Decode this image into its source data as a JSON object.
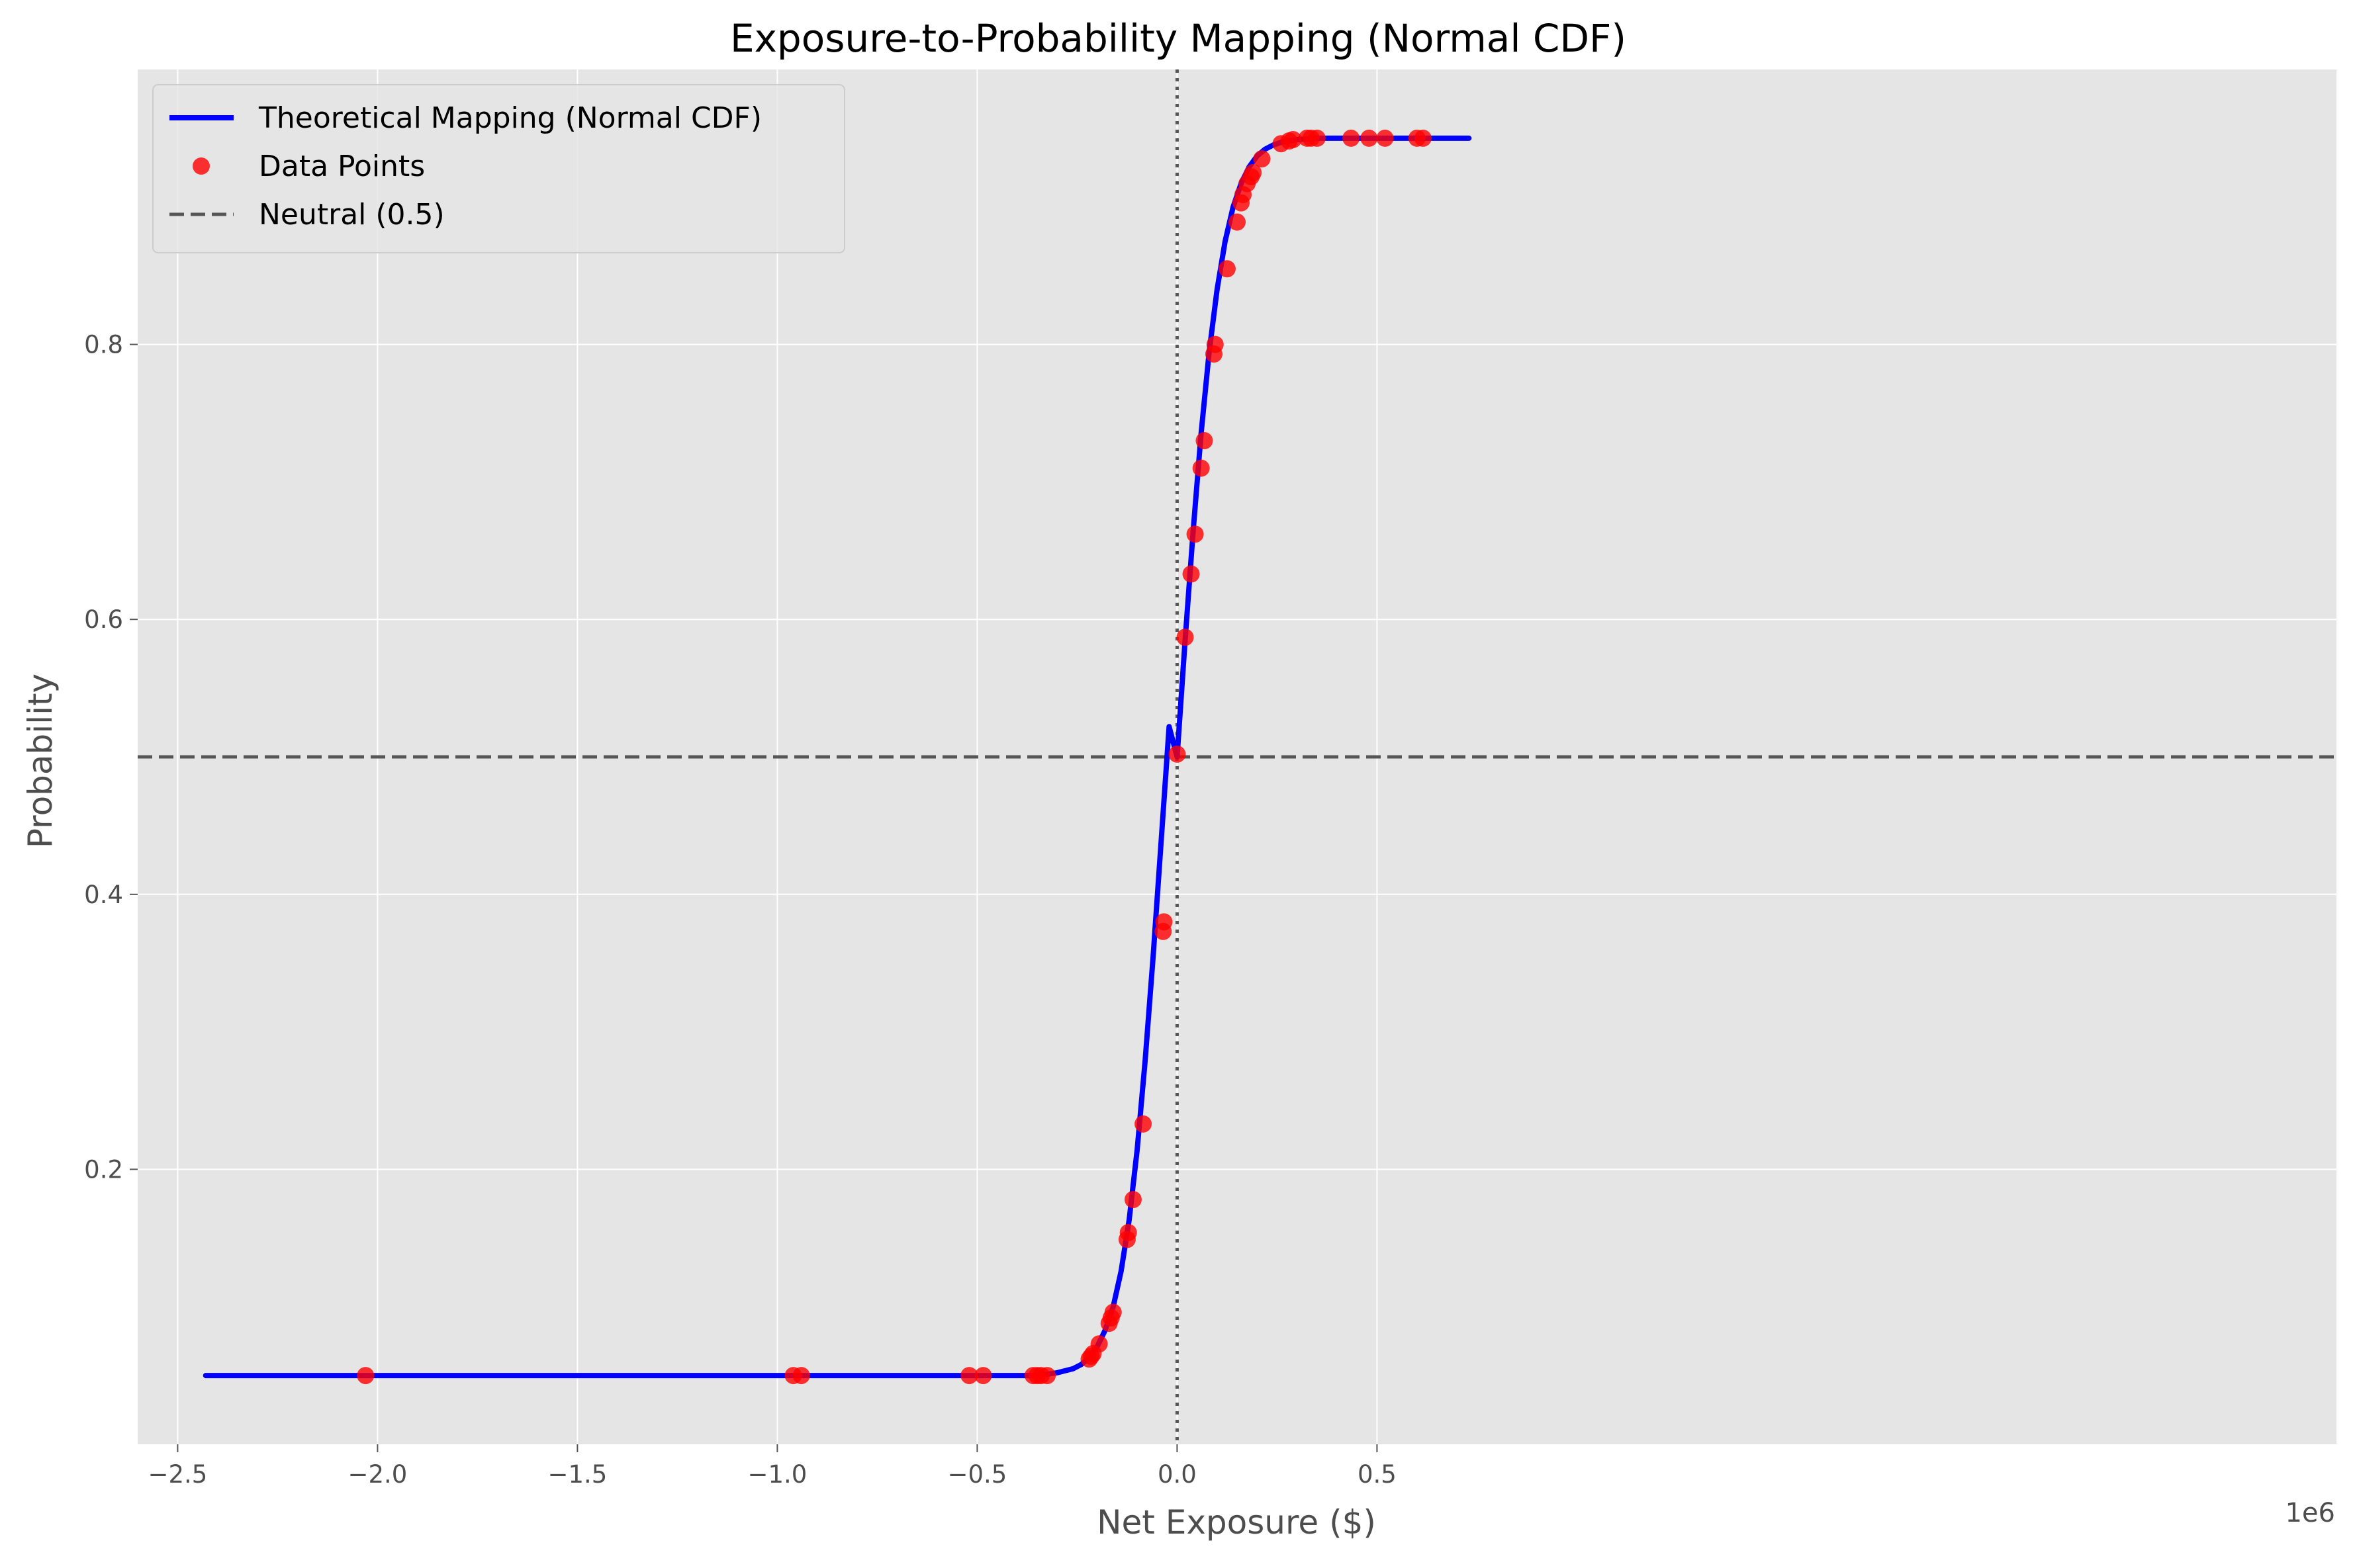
{
  "chart_data": {
    "type": "line",
    "title": "Exposure-to-Probability Mapping (Normal CDF)",
    "xlabel": "Net Exposure ($)",
    "ylabel": "Probability",
    "x_offset_label": "1e6",
    "x_scale": 1000000,
    "xlim": [
      -2600000,
      2900000
    ],
    "ylim": [
      0.0,
      1.0
    ],
    "xticks": [
      -2500000,
      -2000000,
      -1500000,
      -1000000,
      -500000,
      0,
      500000
    ],
    "xtick_labels": [
      "−2.5",
      "−2.0",
      "−1.5",
      "−1.0",
      "−0.5",
      "0.0",
      "0.5"
    ],
    "yticks": [
      0.2,
      0.4,
      0.6,
      0.8
    ],
    "ytick_labels": [
      "0.2",
      "0.4",
      "0.6",
      "0.8"
    ],
    "grid": true,
    "legend_position": "top-left",
    "background_color": "#e5e5e5",
    "series": [
      {
        "name": "Theoretical Mapping (Normal CDF)",
        "kind": "line",
        "color": "#0000ff",
        "x": [
          -2430000,
          -1500000,
          -1000000,
          -500000,
          -400000,
          -350000,
          -300000,
          -260000,
          -240000,
          -220000,
          -200000,
          -180000,
          -160000,
          -140000,
          -120000,
          -100000,
          -80000,
          -60000,
          -40000,
          -20000,
          0,
          20000,
          40000,
          60000,
          80000,
          100000,
          120000,
          140000,
          160000,
          180000,
          200000,
          220000,
          240000,
          260000,
          300000,
          350000,
          400000,
          500000,
          730000
        ],
        "y": [
          0.05,
          0.05,
          0.05,
          0.05,
          0.05,
          0.05,
          0.052,
          0.055,
          0.058,
          0.063,
          0.071,
          0.083,
          0.1,
          0.126,
          0.163,
          0.214,
          0.279,
          0.355,
          0.438,
          0.522,
          0.5,
          0.585,
          0.664,
          0.735,
          0.794,
          0.84,
          0.875,
          0.9,
          0.917,
          0.929,
          0.937,
          0.942,
          0.945,
          0.947,
          0.949,
          0.95,
          0.95,
          0.95,
          0.95
        ]
      },
      {
        "name": "Data Points",
        "kind": "scatter",
        "color": "#ff0000",
        "x": [
          -2030000,
          -960000,
          -940000,
          -520000,
          -485000,
          -360000,
          -350000,
          -340000,
          -325000,
          -220000,
          -215000,
          -210000,
          -195000,
          -170000,
          -165000,
          -160000,
          -125000,
          -122000,
          -110000,
          -85000,
          -35000,
          -33000,
          0,
          20000,
          35000,
          45000,
          60000,
          68000,
          92000,
          95000,
          125000,
          150000,
          160000,
          165000,
          175000,
          185000,
          190000,
          212000,
          260000,
          280000,
          290000,
          325000,
          335000,
          350000,
          435000,
          480000,
          520000,
          600000,
          615000
        ],
        "y": [
          0.05,
          0.05,
          0.05,
          0.05,
          0.05,
          0.05,
          0.05,
          0.05,
          0.05,
          0.062,
          0.064,
          0.066,
          0.073,
          0.088,
          0.092,
          0.096,
          0.149,
          0.154,
          0.178,
          0.233,
          0.373,
          0.38,
          0.502,
          0.587,
          0.633,
          0.662,
          0.71,
          0.73,
          0.793,
          0.8,
          0.855,
          0.889,
          0.903,
          0.909,
          0.917,
          0.922,
          0.925,
          0.935,
          0.946,
          0.948,
          0.949,
          0.95,
          0.95,
          0.95,
          0.95,
          0.95,
          0.95,
          0.95,
          0.95
        ]
      },
      {
        "name": "Neutral (0.5)",
        "kind": "hline",
        "color": "#555555",
        "y": 0.5
      },
      {
        "name": "",
        "kind": "vline",
        "color": "#555555",
        "x": 0
      }
    ]
  }
}
